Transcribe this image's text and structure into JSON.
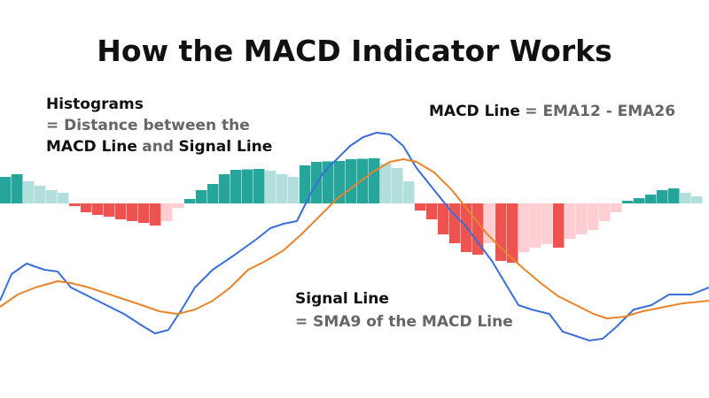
{
  "chart_data": {
    "type": "macd",
    "title": "How the MACD Indicator Works",
    "xlim": [
      0,
      800
    ],
    "ylim": [
      -220,
      230
    ],
    "bar_colors": [
      "#26a69a",
      "#b2dfdb",
      "#ef5350",
      "#ffcdd2"
    ],
    "histogram": [
      30,
      33,
      25,
      20,
      15,
      12,
      -3,
      -10,
      -13,
      -15,
      -18,
      -20,
      -22,
      -25,
      -20,
      -5,
      5,
      15,
      22,
      33,
      38,
      38.5,
      39,
      37,
      33,
      30,
      43,
      47,
      47.5,
      48,
      50,
      50.5,
      51,
      45,
      40,
      25,
      -8,
      -18,
      -35,
      -45,
      -55,
      -58,
      -45,
      -65,
      -67,
      -55,
      -50,
      -46,
      -50,
      -40,
      -35,
      -30,
      -20,
      -10,
      3,
      6,
      10,
      15,
      17,
      12,
      8
    ],
    "series": [
      {
        "name": "MACD Line",
        "color": "#3a6fd8",
        "x": [
          0,
          13,
          30,
          50,
          65,
          80,
          100,
          120,
          140,
          160,
          175,
          190,
          205,
          220,
          240,
          265,
          290,
          305,
          320,
          335,
          350,
          365,
          380,
          395,
          410,
          425,
          440,
          455,
          470,
          490,
          510,
          525,
          540,
          555,
          570,
          585,
          600,
          620,
          635,
          650,
          665,
          680,
          695,
          715,
          735,
          755,
          780,
          800
        ],
        "values": [
          -110,
          -80,
          -68,
          -75,
          -77,
          -95,
          -105,
          -115,
          -125,
          -138,
          -147,
          -143,
          -120,
          -95,
          -75,
          -58,
          -40,
          -28,
          -23,
          -20,
          10,
          35,
          50,
          65,
          75,
          80,
          78,
          65,
          40,
          15,
          -10,
          -25,
          -45,
          -65,
          -90,
          -115,
          -120,
          -125,
          -145,
          -150,
          -155,
          -153,
          -140,
          -120,
          -115,
          -103,
          -103,
          -95
        ]
      },
      {
        "name": "Signal Line",
        "color": "#e8842a",
        "x": [
          0,
          20,
          40,
          65,
          80,
          100,
          130,
          160,
          180,
          200,
          220,
          240,
          260,
          280,
          300,
          320,
          340,
          360,
          380,
          400,
          420,
          440,
          455,
          470,
          490,
          510,
          530,
          550,
          570,
          590,
          610,
          630,
          650,
          670,
          685,
          705,
          725,
          745,
          770,
          800
        ],
        "values": [
          -117,
          -103,
          -95,
          -88,
          -90,
          -95,
          -105,
          -115,
          -122,
          -125,
          -120,
          -110,
          -95,
          -75,
          -65,
          -53,
          -35,
          -15,
          5,
          20,
          35,
          47,
          50,
          47,
          35,
          15,
          -10,
          -35,
          -55,
          -73,
          -90,
          -105,
          -115,
          -125,
          -130,
          -128,
          -122,
          -118,
          -113,
          -110
        ]
      }
    ],
    "annotations": {
      "histograms": {
        "heading": "Histograms",
        "line1": "= Distance between the",
        "line2": [
          "MACD Line",
          "and",
          "Signal Line"
        ]
      },
      "macd": [
        "MACD Line",
        "= EMA12 - EMA26"
      ],
      "signal": {
        "heading": "Signal Line",
        "line1": "= SMA9 of the MACD Line"
      }
    }
  }
}
